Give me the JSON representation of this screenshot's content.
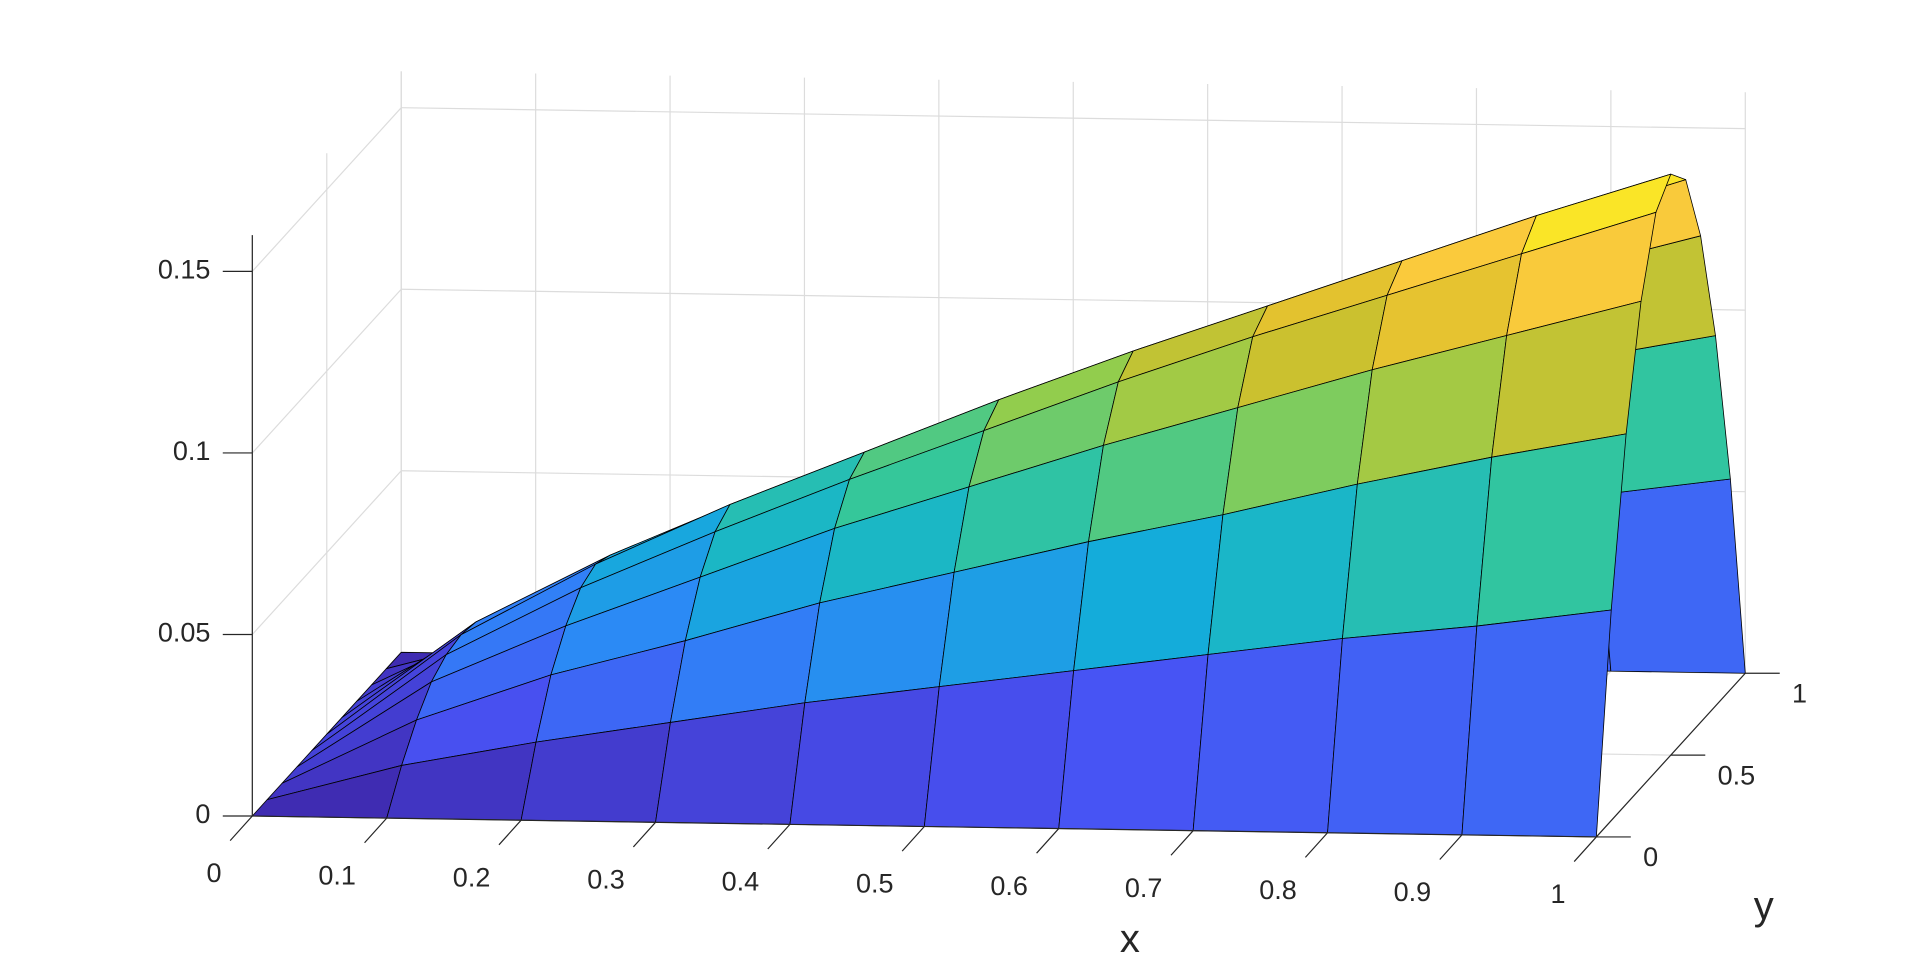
{
  "chart_data": {
    "type": "surface",
    "xlabel": "x",
    "ylabel": "y",
    "x": [
      0,
      0.1,
      0.2,
      0.3,
      0.4,
      0.5,
      0.6,
      0.7,
      0.8,
      0.9,
      1
    ],
    "y": [
      0,
      0.1,
      0.2,
      0.3,
      0.4,
      0.5,
      0.6,
      0.7,
      0.8,
      0.9,
      1
    ],
    "z": [
      [
        0,
        0,
        0,
        0,
        0,
        0,
        0,
        0,
        0,
        0,
        0
      ],
      [
        0,
        0.01,
        0.018,
        0.024,
        0.027,
        0.028,
        0.027,
        0.024,
        0.018,
        0.01,
        0
      ],
      [
        0,
        0.017,
        0.031,
        0.04,
        0.046,
        0.048,
        0.046,
        0.04,
        0.031,
        0.017,
        0
      ],
      [
        0,
        0.023,
        0.041,
        0.054,
        0.062,
        0.065,
        0.062,
        0.054,
        0.041,
        0.023,
        0
      ],
      [
        0,
        0.029,
        0.052,
        0.068,
        0.077,
        0.08,
        0.077,
        0.068,
        0.052,
        0.029,
        0
      ],
      [
        0,
        0.034,
        0.061,
        0.08,
        0.091,
        0.095,
        0.091,
        0.08,
        0.061,
        0.034,
        0
      ],
      [
        0,
        0.039,
        0.07,
        0.092,
        0.105,
        0.109,
        0.105,
        0.092,
        0.07,
        0.039,
        0
      ],
      [
        0,
        0.044,
        0.078,
        0.103,
        0.118,
        0.122,
        0.118,
        0.103,
        0.078,
        0.044,
        0
      ],
      [
        0,
        0.049,
        0.087,
        0.114,
        0.13,
        0.135,
        0.13,
        0.114,
        0.087,
        0.049,
        0
      ],
      [
        0,
        0.053,
        0.095,
        0.124,
        0.142,
        0.148,
        0.142,
        0.124,
        0.095,
        0.053,
        0
      ],
      [
        0,
        0.058,
        0.102,
        0.134,
        0.154,
        0.16,
        0.154,
        0.134,
        0.102,
        0.058,
        0
      ]
    ],
    "xlim": [
      0,
      1
    ],
    "ylim": [
      0,
      1
    ],
    "zlim": [
      0,
      0.16
    ],
    "xticks": [
      0,
      0.1,
      0.2,
      0.3,
      0.4,
      0.5,
      0.6,
      0.7,
      0.8,
      0.9,
      1
    ],
    "yticks": [
      0,
      0.5,
      1
    ],
    "zticks": [
      0,
      0.05,
      0.1,
      0.15
    ],
    "grid": true,
    "colormap": [
      "#3e26a8",
      "#4852f4",
      "#2d87f7",
      "#11b1d6",
      "#37c897",
      "#92cd4d",
      "#d8be28",
      "#fccb3d",
      "#f9fb15"
    ]
  }
}
